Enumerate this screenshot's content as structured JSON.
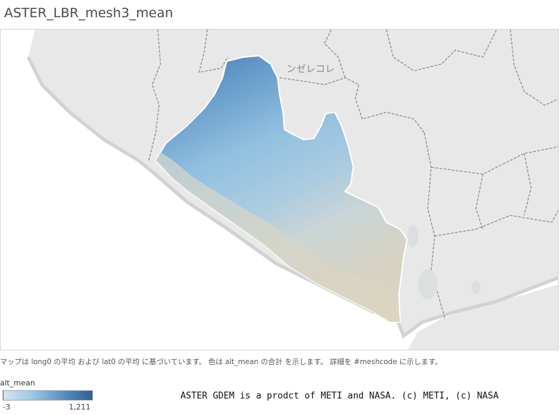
{
  "title": "ASTER_LBR_mesh3_mean",
  "map": {
    "country_label": "ンゼレコレ",
    "colors": {
      "land": "#e8e8e8",
      "sea": "#ffffff",
      "border": "#8e8e8e",
      "coast": "#cfcfcf",
      "low_altitude": "#d8d3c2",
      "mid_altitude": "#8fbfe0",
      "high_altitude": "#3f74aa"
    }
  },
  "caption": "マップは long0 の平均 および lat0 の平均 に基づいています。 色は alt_mean の合計 を示します。 詳細を #meshcode に示します。",
  "legend": {
    "title": "alt_mean",
    "min_label": "-3",
    "max_label": "1,211"
  },
  "credit": "ASTER GDEM is a prodct of METI and NASA. (c) METI, (c) NASA"
}
